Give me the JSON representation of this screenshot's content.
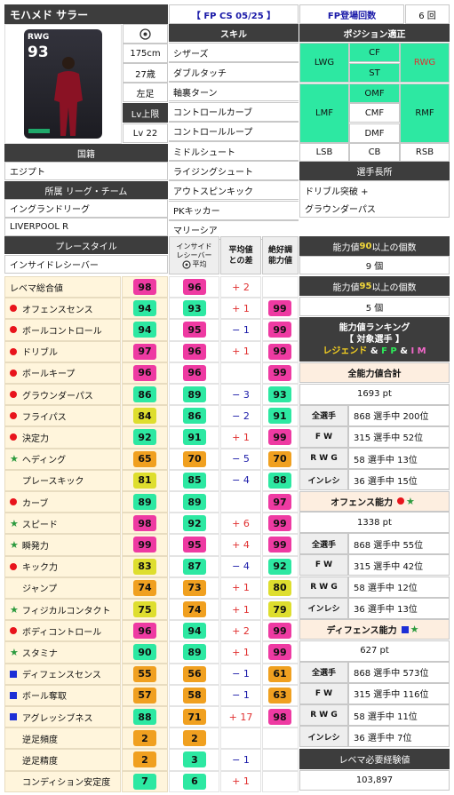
{
  "player": {
    "name": "モハメド サラー",
    "card_type": "【 FP CS 05/25 】",
    "fp_count_label": "FP登場回数",
    "fp_count": "6 回",
    "card_position": "RWG",
    "card_rating": "93",
    "height": "175cm",
    "age": "27歳",
    "foot": "左足",
    "lv_max_label": "Lv上限",
    "lv": "Lv 22"
  },
  "skills": {
    "header": "スキル",
    "items": [
      "シザーズ",
      "ダブルタッチ",
      "軸裏ターン",
      "コントロールカーブ",
      "コントロールループ",
      "ミドルシュート",
      "ライジングシュート",
      "アウトスピンキック",
      "PKキッカー",
      "マリーシア"
    ]
  },
  "positions": {
    "header": "ポジション適正",
    "grid": [
      "CF",
      "ST",
      "LWG",
      "RWG",
      "OMF",
      "CMF",
      "DMF",
      "LMF",
      "RMF",
      "LSB",
      "CB",
      "RSB"
    ]
  },
  "info": {
    "nationality_label": "国籍",
    "nationality": "エジプト",
    "league_label": "所属 リーグ・チーム",
    "league": "イングランドリーグ",
    "team": "LIVERPOOL R",
    "playstyle_label": "プレースタイル",
    "playstyle": "インサイドレシーバー"
  },
  "specialty": {
    "header": "選手長所",
    "line1": "ドリブル突破 +",
    "line2": "グラウンダーパス"
  },
  "counts": {
    "c90_pre": "能力値 ",
    "c90_num": "90",
    "c90_post": " 以上の個数",
    "c90_val": "9 個",
    "c95_pre": "能力値 ",
    "c95_num": "95",
    "c95_post": " 以上の個数",
    "c95_val": "5 個"
  },
  "stat_headers": {
    "col2_l1": "インサイド",
    "col2_l2": "レシーバー",
    "col2_avg": "平均",
    "col3_l1": "平均値",
    "col3_l2": "との差",
    "col4_l1": "絶好調",
    "col4_l2": "能力値"
  },
  "stats": [
    {
      "name": "レベマ総合値",
      "mark": "none",
      "val": "98",
      "avg": "96",
      "diff": "+ 2",
      "peak": ""
    },
    {
      "name": "オフェンスセンス",
      "mark": "dot",
      "val": "94",
      "avg": "93",
      "diff": "+ 1",
      "peak": "99"
    },
    {
      "name": "ボールコントロール",
      "mark": "dot",
      "val": "94",
      "avg": "95",
      "diff": "− 1",
      "peak": "99"
    },
    {
      "name": "ドリブル",
      "mark": "dot",
      "val": "97",
      "avg": "96",
      "diff": "+ 1",
      "peak": "99"
    },
    {
      "name": "ボールキープ",
      "mark": "dot",
      "val": "96",
      "avg": "96",
      "diff": "",
      "peak": "99"
    },
    {
      "name": "グラウンダーパス",
      "mark": "dot",
      "val": "86",
      "avg": "89",
      "diff": "− 3",
      "peak": "93"
    },
    {
      "name": "フライパス",
      "mark": "dot",
      "val": "84",
      "avg": "86",
      "diff": "− 2",
      "peak": "91"
    },
    {
      "name": "決定力",
      "mark": "dot",
      "val": "92",
      "avg": "91",
      "diff": "+ 1",
      "peak": "99"
    },
    {
      "name": "ヘディング",
      "mark": "star",
      "val": "65",
      "avg": "70",
      "diff": "− 5",
      "peak": "70"
    },
    {
      "name": "プレースキック",
      "mark": "none",
      "val": "81",
      "avg": "85",
      "diff": "− 4",
      "peak": "88"
    },
    {
      "name": "カーブ",
      "mark": "dot",
      "val": "89",
      "avg": "89",
      "diff": "",
      "peak": "97"
    },
    {
      "name": "スピード",
      "mark": "star",
      "val": "98",
      "avg": "92",
      "diff": "+ 6",
      "peak": "99"
    },
    {
      "name": "瞬発力",
      "mark": "star",
      "val": "99",
      "avg": "95",
      "diff": "+ 4",
      "peak": "99"
    },
    {
      "name": "キック力",
      "mark": "dot",
      "val": "83",
      "avg": "87",
      "diff": "− 4",
      "peak": "92"
    },
    {
      "name": "ジャンプ",
      "mark": "none",
      "val": "74",
      "avg": "73",
      "diff": "+ 1",
      "peak": "80"
    },
    {
      "name": "フィジカルコンタクト",
      "mark": "star",
      "val": "75",
      "avg": "74",
      "diff": "+ 1",
      "peak": "79"
    },
    {
      "name": "ボディコントロール",
      "mark": "dot",
      "val": "96",
      "avg": "94",
      "diff": "+ 2",
      "peak": "99"
    },
    {
      "name": "スタミナ",
      "mark": "star",
      "val": "90",
      "avg": "89",
      "diff": "+ 1",
      "peak": "99"
    },
    {
      "name": "ディフェンスセンス",
      "mark": "sq",
      "val": "55",
      "avg": "56",
      "diff": "− 1",
      "peak": "61"
    },
    {
      "name": "ボール奪取",
      "mark": "sq",
      "val": "57",
      "avg": "58",
      "diff": "− 1",
      "peak": "63"
    },
    {
      "name": "アグレッシブネス",
      "mark": "sq",
      "val": "88",
      "avg": "71",
      "diff": "+ 17",
      "peak": "98"
    },
    {
      "name": "逆足頻度",
      "mark": "none",
      "val": "2",
      "avg": "2",
      "diff": "",
      "peak": ""
    },
    {
      "name": "逆足精度",
      "mark": "none",
      "val": "2",
      "avg": "3",
      "diff": "− 1",
      "peak": ""
    },
    {
      "name": "コンディション安定度",
      "mark": "none",
      "val": "7",
      "avg": "6",
      "diff": "+ 1",
      "peak": ""
    }
  ],
  "ranking": {
    "title1": "能力値ランキング",
    "title2": "【 対象選手 】",
    "legend": "レジェンド",
    "and1": " & ",
    "fp": "F P",
    "and2": " & ",
    "im": "I M",
    "total_label": "全能力値合計",
    "total_val": "1693 pt",
    "total_rows": [
      [
        "全選手",
        "868 選手中 200位"
      ],
      [
        "F W",
        "315 選手中 52位"
      ],
      [
        "R W G",
        "58 選手中 13位"
      ],
      [
        "インレシ",
        "36 選手中 15位"
      ]
    ],
    "off_label": "オフェンス能力",
    "off_val": "1338 pt",
    "off_rows": [
      [
        "全選手",
        "868 選手中 55位"
      ],
      [
        "F W",
        "315 選手中 42位"
      ],
      [
        "R W G",
        "58 選手中 12位"
      ],
      [
        "インレシ",
        "36 選手中 13位"
      ]
    ],
    "def_label": "ディフェンス能力",
    "def_val": "627 pt",
    "def_rows": [
      [
        "全選手",
        "868 選手中 573位"
      ],
      [
        "F W",
        "315 選手中 116位"
      ],
      [
        "R W G",
        "58 選手中 11位"
      ],
      [
        "インレシ",
        "36 選手中 7位"
      ]
    ],
    "exp_label": "レベマ必要経験値",
    "exp_val": "103,897"
  },
  "colors": {
    "grade_99": "#ee3aa2",
    "grade_90": "#2de8a2",
    "grade_80": "#dede2e",
    "grade_70": "#f0a020",
    "grade_0": "#f0a020",
    "peak": "#2de8a2",
    "card_ribbon": "#1fa86a"
  }
}
